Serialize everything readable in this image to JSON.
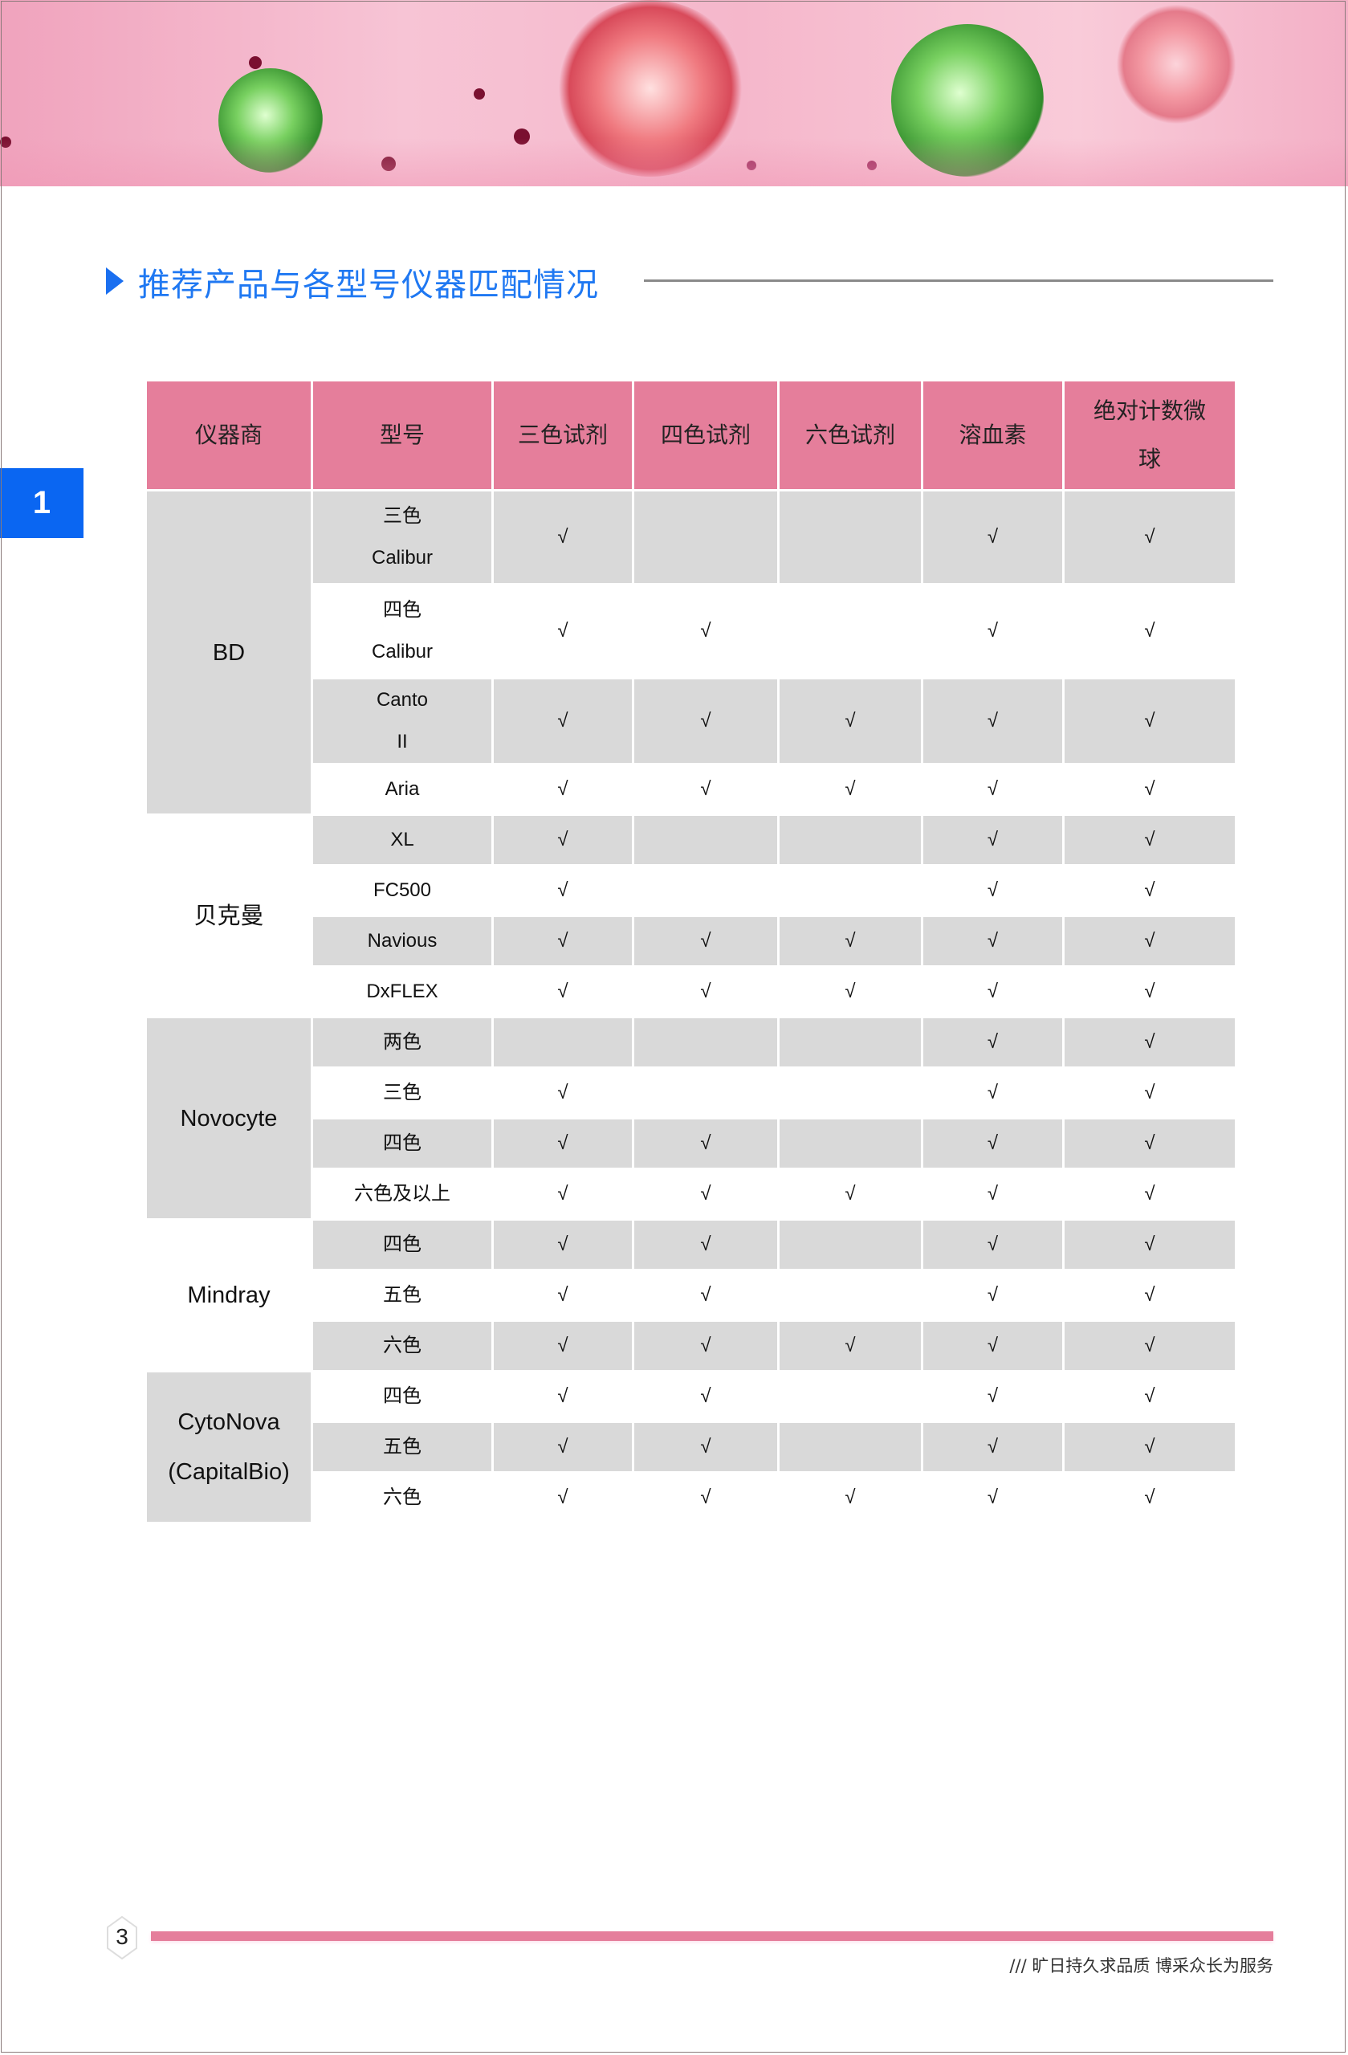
{
  "title": "推荐产品与各型号仪器匹配情况",
  "section_tab": "1",
  "colors": {
    "accent_blue": "#1f78f2",
    "header_pink": "#e57e9b",
    "row_gray": "#d9d9d9"
  },
  "table": {
    "headers": [
      "仪器商",
      "型号",
      "三色试剂",
      "四色试剂",
      "六色试剂",
      "溶血素",
      "绝对计数微球"
    ],
    "check_mark": "√",
    "vendors": [
      {
        "name": "BD",
        "models": [
          {
            "name": "三色 Calibur",
            "checks": [
              true,
              false,
              false,
              true,
              true
            ]
          },
          {
            "name": "四色 Calibur",
            "checks": [
              true,
              true,
              false,
              true,
              true
            ]
          },
          {
            "name": "Canto II",
            "checks": [
              true,
              true,
              true,
              true,
              true
            ]
          },
          {
            "name": "Aria",
            "checks": [
              true,
              true,
              true,
              true,
              true
            ]
          }
        ]
      },
      {
        "name": "贝克曼",
        "models": [
          {
            "name": "XL",
            "checks": [
              true,
              false,
              false,
              true,
              true
            ]
          },
          {
            "name": "FC500",
            "checks": [
              true,
              false,
              false,
              true,
              true
            ]
          },
          {
            "name": "Navious",
            "checks": [
              true,
              true,
              true,
              true,
              true
            ]
          },
          {
            "name": "DxFLEX",
            "checks": [
              true,
              true,
              true,
              true,
              true
            ]
          }
        ]
      },
      {
        "name": "Novocyte",
        "models": [
          {
            "name": "两色",
            "checks": [
              false,
              false,
              false,
              true,
              true
            ]
          },
          {
            "name": "三色",
            "checks": [
              true,
              false,
              false,
              true,
              true
            ]
          },
          {
            "name": "四色",
            "checks": [
              true,
              true,
              false,
              true,
              true
            ]
          },
          {
            "name": "六色及以上",
            "checks": [
              true,
              true,
              true,
              true,
              true
            ]
          }
        ]
      },
      {
        "name": "Mindray",
        "models": [
          {
            "name": "四色",
            "checks": [
              true,
              true,
              false,
              true,
              true
            ]
          },
          {
            "name": "五色",
            "checks": [
              true,
              true,
              false,
              true,
              true
            ]
          },
          {
            "name": "六色",
            "checks": [
              true,
              true,
              true,
              true,
              true
            ]
          }
        ]
      },
      {
        "name": "CytoNova (CapitalBio)",
        "models": [
          {
            "name": "四色",
            "checks": [
              true,
              true,
              false,
              true,
              true
            ]
          },
          {
            "name": "五色",
            "checks": [
              true,
              true,
              false,
              true,
              true
            ]
          },
          {
            "name": "六色",
            "checks": [
              true,
              true,
              true,
              true,
              true
            ]
          }
        ]
      }
    ]
  },
  "footer": {
    "page_number": "3",
    "slogan": "/// 旷日持久求品质 博采众长为服务"
  }
}
